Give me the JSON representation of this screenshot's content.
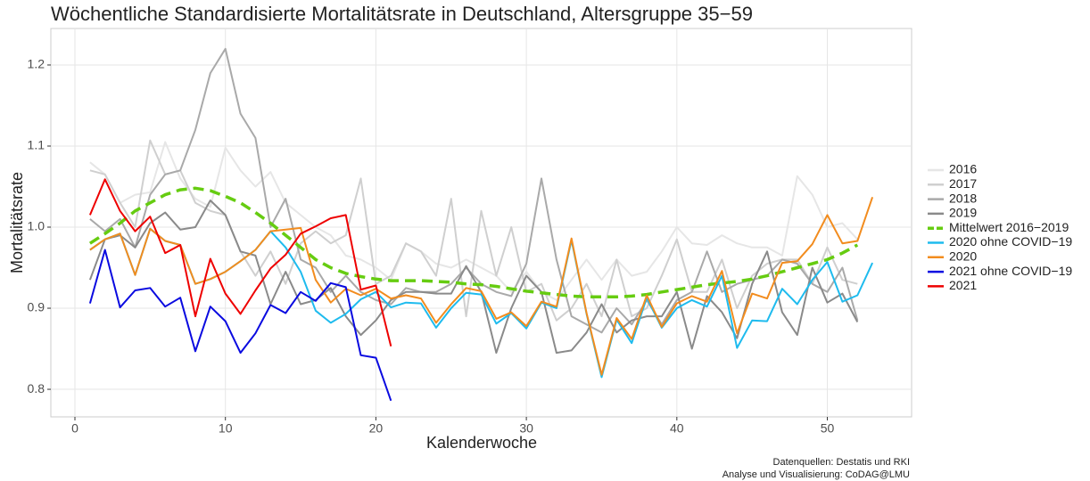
{
  "chart_data": {
    "type": "line",
    "title": "Wöchentliche Standardisierte Mortalitätsrate in Deutschland, Altersgruppe 35−59",
    "xlabel": "Kalenderwoche",
    "ylabel": "Mortalitätsrate",
    "caption": [
      "Datenquellen: Destatis und RKI",
      "Analyse und Visualisierung: CoDAG@LMU"
    ],
    "xlim": [
      -1.6,
      55.6
    ],
    "ylim": [
      0.766,
      1.245
    ],
    "xticks": [
      0,
      10,
      20,
      30,
      40,
      50
    ],
    "yticks": [
      0.8,
      0.9,
      {
        "value": 1.0,
        "label": "1.0"
      },
      1.1,
      1.2
    ],
    "grid": true,
    "legend": "right",
    "x": [
      1,
      2,
      3,
      4,
      5,
      6,
      7,
      8,
      9,
      10,
      11,
      12,
      13,
      14,
      15,
      16,
      17,
      18,
      19,
      20,
      21,
      22,
      23,
      24,
      25,
      26,
      27,
      28,
      29,
      30,
      31,
      32,
      33,
      34,
      35,
      36,
      37,
      38,
      39,
      40,
      41,
      42,
      43,
      44,
      45,
      46,
      47,
      48,
      49,
      50,
      51,
      52,
      53
    ],
    "series": [
      {
        "name": "2016",
        "color": "#e6e6e6",
        "values": [
          1.08,
          1.065,
          1.03,
          1.04,
          1.043,
          1.105,
          1.06,
          1.035,
          1.025,
          1.098,
          1.07,
          1.05,
          1.068,
          1.03,
          1.015,
          1.0,
          0.99,
          0.965,
          0.96,
          0.95,
          0.935,
          0.98,
          0.97,
          0.955,
          0.95,
          0.96,
          0.95,
          0.94,
          0.92,
          0.945,
          0.92,
          0.91,
          0.935,
          0.96,
          0.935,
          0.96,
          0.94,
          0.945,
          0.97,
          1.0,
          0.98,
          0.978,
          0.99,
          0.98,
          0.975,
          0.975,
          0.965,
          1.063,
          1.04,
          1.0,
          1.005,
          0.985,
          null
        ]
      },
      {
        "name": "2017",
        "color": "#cfcfcf",
        "values": [
          1.07,
          1.065,
          1.03,
          1.0,
          1.107,
          1.065,
          1.07,
          1.03,
          1.02,
          1.015,
          0.97,
          0.94,
          0.97,
          0.93,
          0.98,
          0.995,
          0.98,
          0.99,
          1.06,
          0.93,
          0.94,
          0.98,
          0.97,
          0.94,
          1.035,
          0.89,
          1.02,
          0.94,
          1.0,
          0.92,
          0.93,
          0.885,
          0.9,
          0.93,
          0.89,
          0.96,
          0.89,
          0.9,
          0.94,
          0.985,
          0.92,
          0.92,
          0.96,
          0.9,
          0.94,
          0.955,
          0.96,
          0.96,
          0.93,
          0.975,
          0.935,
          0.93,
          null
        ]
      },
      {
        "name": "2018",
        "color": "#a9a9a9",
        "values": [
          1.01,
          0.995,
          1.01,
          0.975,
          1.04,
          1.065,
          1.07,
          1.12,
          1.19,
          1.22,
          1.14,
          1.11,
          1.0,
          1.035,
          0.96,
          0.95,
          0.92,
          0.94,
          0.92,
          0.91,
          0.905,
          0.925,
          0.92,
          0.92,
          0.93,
          0.95,
          0.93,
          0.92,
          0.915,
          0.955,
          1.06,
          0.96,
          0.89,
          0.88,
          0.87,
          0.9,
          0.88,
          0.91,
          0.88,
          0.91,
          0.92,
          0.97,
          0.92,
          0.93,
          0.935,
          0.94,
          0.96,
          0.955,
          0.93,
          0.92,
          0.95,
          0.885,
          null
        ]
      },
      {
        "name": "2019",
        "color": "#8a8a8a",
        "values": [
          0.935,
          0.985,
          0.99,
          0.975,
          1.005,
          1.018,
          0.997,
          1.0,
          1.033,
          1.015,
          0.97,
          0.965,
          0.905,
          0.945,
          0.905,
          0.91,
          0.925,
          0.89,
          0.867,
          0.885,
          0.91,
          0.92,
          0.92,
          0.918,
          0.918,
          0.952,
          0.92,
          0.845,
          0.9,
          0.94,
          0.92,
          0.845,
          0.848,
          0.87,
          0.905,
          0.87,
          0.885,
          0.89,
          0.89,
          0.92,
          0.85,
          0.915,
          0.895,
          0.863,
          0.93,
          0.97,
          0.895,
          0.867,
          0.95,
          0.907,
          0.918,
          0.883,
          null
        ]
      },
      {
        "name": "Mittelwert 2016−2019",
        "color": "#66cc11",
        "linestyle": "dashed",
        "values": [
          0.98,
          0.992,
          1.005,
          1.02,
          1.03,
          1.04,
          1.046,
          1.048,
          1.045,
          1.038,
          1.03,
          1.018,
          1.005,
          0.99,
          0.975,
          0.96,
          0.95,
          0.943,
          0.939,
          0.936,
          0.934,
          0.934,
          0.934,
          0.933,
          0.932,
          0.93,
          0.929,
          0.927,
          0.924,
          0.921,
          0.919,
          0.917,
          0.915,
          0.914,
          0.914,
          0.914,
          0.915,
          0.917,
          0.92,
          0.923,
          0.926,
          0.929,
          0.931,
          0.933,
          0.936,
          0.94,
          0.945,
          0.95,
          0.955,
          0.96,
          0.968,
          0.978,
          null
        ]
      },
      {
        "name": "2020 ohne COVID−19",
        "color": "#1ebbee",
        "values": [
          0.972,
          0.985,
          0.992,
          0.941,
          0.998,
          0.983,
          0.978,
          0.93,
          0.936,
          0.945,
          0.958,
          0.972,
          0.995,
          0.975,
          0.945,
          0.897,
          0.882,
          0.893,
          0.911,
          0.92,
          0.901,
          0.907,
          0.906,
          0.876,
          0.9,
          0.919,
          0.917,
          0.881,
          0.894,
          0.875,
          0.907,
          0.9,
          0.984,
          0.893,
          0.815,
          0.886,
          0.857,
          0.913,
          0.876,
          0.9,
          0.91,
          0.902,
          0.94,
          0.851,
          0.885,
          0.884,
          0.924,
          0.905,
          0.935,
          0.957,
          0.908,
          0.916,
          0.956
        ]
      },
      {
        "name": "2020",
        "color": "#f28c1e",
        "values": [
          0.972,
          0.985,
          0.992,
          0.941,
          0.998,
          0.983,
          0.978,
          0.93,
          0.936,
          0.945,
          0.958,
          0.972,
          0.995,
          0.997,
          0.999,
          0.935,
          0.907,
          0.924,
          0.916,
          0.924,
          0.912,
          0.916,
          0.912,
          0.882,
          0.905,
          0.925,
          0.921,
          0.887,
          0.895,
          0.878,
          0.908,
          0.902,
          0.986,
          0.894,
          0.818,
          0.888,
          0.862,
          0.916,
          0.877,
          0.906,
          0.915,
          0.908,
          0.946,
          0.869,
          0.918,
          0.912,
          0.956,
          0.958,
          0.979,
          1.015,
          0.98,
          0.983,
          1.037
        ]
      },
      {
        "name": "2021 ohne COVID−19",
        "color": "#0a0ae0",
        "values": [
          0.906,
          0.972,
          0.901,
          0.922,
          0.925,
          0.902,
          0.913,
          0.847,
          0.902,
          0.884,
          0.845,
          0.869,
          0.904,
          0.894,
          0.92,
          0.909,
          0.931,
          0.926,
          0.842,
          0.839,
          0.786,
          null,
          null,
          null,
          null,
          null,
          null,
          null,
          null,
          null,
          null,
          null,
          null,
          null,
          null,
          null,
          null,
          null,
          null,
          null,
          null,
          null,
          null,
          null,
          null,
          null,
          null,
          null,
          null,
          null,
          null,
          null,
          null
        ]
      },
      {
        "name": "2021",
        "color": "#ee0000",
        "values": [
          1.015,
          1.059,
          1.02,
          0.995,
          1.013,
          0.968,
          0.978,
          0.89,
          0.961,
          0.918,
          0.893,
          0.922,
          0.949,
          0.966,
          0.992,
          1.001,
          1.011,
          1.015,
          0.923,
          0.928,
          0.853,
          null,
          null,
          null,
          null,
          null,
          null,
          null,
          null,
          null,
          null,
          null,
          null,
          null,
          null,
          null,
          null,
          null,
          null,
          null,
          null,
          null,
          null,
          null,
          null,
          null,
          null,
          null,
          null,
          null,
          null,
          null,
          null
        ]
      }
    ]
  }
}
